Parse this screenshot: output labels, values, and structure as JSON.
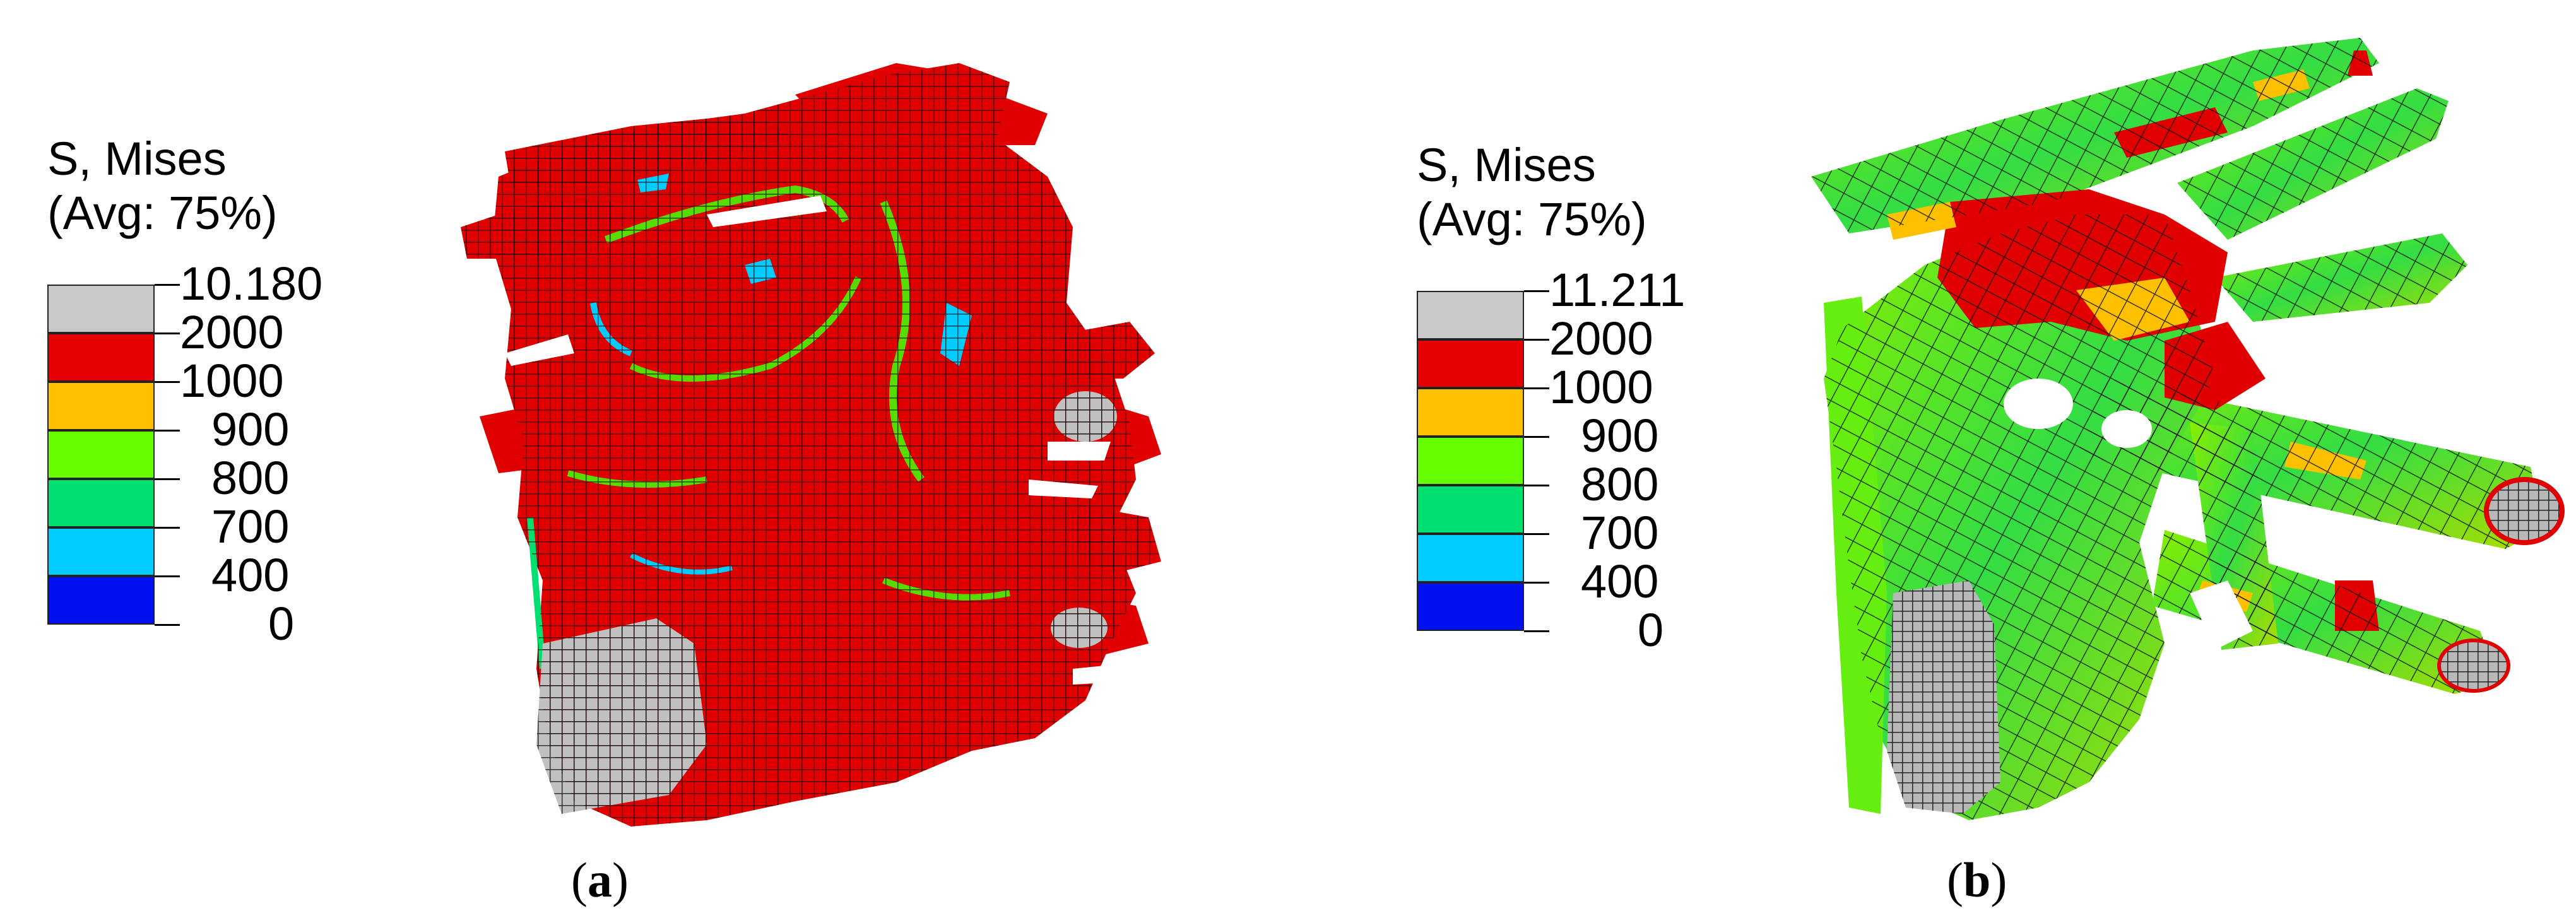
{
  "panels": [
    {
      "id": "a",
      "legend": {
        "title": "S, Mises",
        "subtitle": "(Avg: 75%)",
        "values": [
          "10.180",
          "2000",
          "1000",
          "900",
          "800",
          "700",
          "400",
          "0"
        ],
        "colors": [
          "#c8c8c8",
          "#e60000",
          "#ffc000",
          "#66ff00",
          "#00e070",
          "#00ccff",
          "#0010ee"
        ]
      },
      "caption": "(a)",
      "caption_letter": "a"
    },
    {
      "id": "b",
      "legend": {
        "title": "S, Mises",
        "subtitle": "(Avg: 75%)",
        "values": [
          "11.211",
          "2000",
          "1000",
          "900",
          "800",
          "700",
          "400",
          "0"
        ],
        "colors": [
          "#c8c8c8",
          "#e60000",
          "#ffc000",
          "#66ff00",
          "#00e070",
          "#00ccff",
          "#0010ee"
        ]
      },
      "caption": "(b)",
      "caption_letter": "b"
    }
  ]
}
